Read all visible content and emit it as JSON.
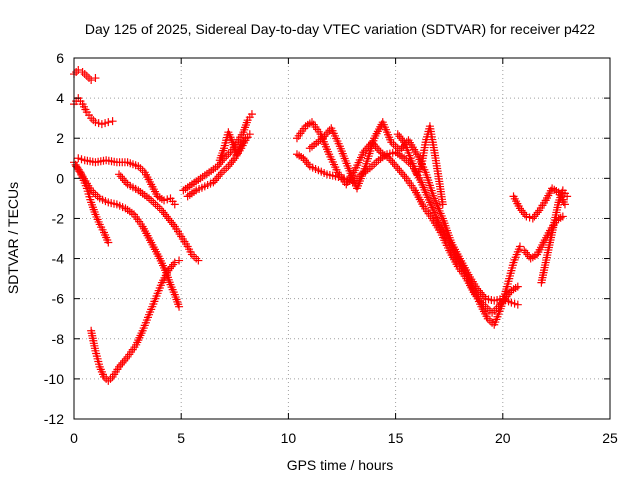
{
  "chart_data": {
    "type": "scatter",
    "title": "Day 125 of 2025, Sidereal Day-to-day VTEC variation (SDTVAR) for receiver p422",
    "xlabel": "GPS time / hours",
    "ylabel": "SDTVAR / TECUs",
    "xlim": [
      0,
      25
    ],
    "ylim": [
      -12,
      6
    ],
    "xticks": [
      0,
      5,
      10,
      15,
      20,
      25
    ],
    "yticks": [
      -12,
      -10,
      -8,
      -6,
      -4,
      -2,
      0,
      2,
      4,
      6
    ],
    "grid": true,
    "marker": "+",
    "color": "#ff0000",
    "series": [
      {
        "name": "trace-a-top",
        "points": [
          [
            0.0,
            5.2
          ],
          [
            0.2,
            5.4
          ],
          [
            0.4,
            5.3
          ],
          [
            0.6,
            5.1
          ],
          [
            0.8,
            4.9
          ],
          [
            1.0,
            5.0
          ]
        ]
      },
      {
        "name": "trace-b-upper",
        "points": [
          [
            0.0,
            3.7
          ],
          [
            0.2,
            4.0
          ],
          [
            0.4,
            3.7
          ],
          [
            0.6,
            3.3
          ],
          [
            0.8,
            3.0
          ],
          [
            1.0,
            2.8
          ],
          [
            1.3,
            2.7
          ],
          [
            1.6,
            2.8
          ],
          [
            1.8,
            2.85
          ]
        ]
      },
      {
        "name": "trace-c-descend",
        "points": [
          [
            0.0,
            0.8
          ],
          [
            0.3,
            0.3
          ],
          [
            0.6,
            -0.5
          ],
          [
            0.8,
            -1.2
          ],
          [
            1.0,
            -1.8
          ],
          [
            1.2,
            -2.3
          ],
          [
            1.4,
            -2.7
          ],
          [
            1.6,
            -3.2
          ]
        ]
      },
      {
        "name": "trace-d-long",
        "points": [
          [
            0.2,
            1.0
          ],
          [
            0.5,
            0.9
          ],
          [
            1.0,
            0.8
          ],
          [
            1.5,
            0.9
          ],
          [
            2.0,
            0.8
          ],
          [
            2.5,
            0.8
          ],
          [
            3.0,
            0.6
          ],
          [
            3.3,
            0.3
          ],
          [
            3.6,
            -0.3
          ],
          [
            3.9,
            -0.9
          ],
          [
            4.2,
            -1.1
          ],
          [
            4.5,
            -1.0
          ],
          [
            4.7,
            -1.3
          ]
        ]
      },
      {
        "name": "trace-e-mid",
        "points": [
          [
            2.1,
            0.2
          ],
          [
            2.5,
            -0.3
          ],
          [
            3.0,
            -0.6
          ],
          [
            3.5,
            -1.0
          ],
          [
            3.8,
            -1.3
          ],
          [
            4.1,
            -1.6
          ],
          [
            4.4,
            -2.0
          ],
          [
            4.7,
            -2.4
          ],
          [
            5.0,
            -2.9
          ],
          [
            5.3,
            -3.4
          ],
          [
            5.5,
            -3.8
          ],
          [
            5.8,
            -4.1
          ]
        ]
      },
      {
        "name": "trace-f-deep",
        "points": [
          [
            0.1,
            0.6
          ],
          [
            0.4,
            0.1
          ],
          [
            0.8,
            -0.6
          ],
          [
            1.2,
            -1.0
          ],
          [
            1.6,
            -1.2
          ],
          [
            2.0,
            -1.3
          ],
          [
            2.4,
            -1.5
          ],
          [
            2.8,
            -1.8
          ],
          [
            3.2,
            -2.4
          ],
          [
            3.6,
            -3.2
          ],
          [
            4.0,
            -4.0
          ],
          [
            4.3,
            -4.7
          ],
          [
            4.5,
            -5.3
          ],
          [
            4.7,
            -5.8
          ],
          [
            4.9,
            -6.4
          ]
        ]
      },
      {
        "name": "trace-g-valley",
        "points": [
          [
            0.8,
            -7.6
          ],
          [
            1.0,
            -8.6
          ],
          [
            1.2,
            -9.4
          ],
          [
            1.4,
            -9.9
          ],
          [
            1.6,
            -10.1
          ],
          [
            1.8,
            -9.9
          ],
          [
            2.1,
            -9.4
          ],
          [
            2.5,
            -8.9
          ],
          [
            2.9,
            -8.3
          ],
          [
            3.2,
            -7.6
          ],
          [
            3.5,
            -6.8
          ],
          [
            3.8,
            -6.0
          ],
          [
            4.1,
            -5.2
          ],
          [
            4.4,
            -4.6
          ],
          [
            4.7,
            -4.2
          ],
          [
            4.9,
            -4.1
          ]
        ]
      },
      {
        "name": "trace-h-rise",
        "points": [
          [
            5.1,
            -0.6
          ],
          [
            5.5,
            -0.3
          ],
          [
            5.9,
            0.0
          ],
          [
            6.3,
            0.3
          ],
          [
            6.7,
            0.6
          ],
          [
            7.0,
            1.0
          ],
          [
            7.3,
            1.3
          ],
          [
            7.6,
            1.8
          ],
          [
            7.9,
            2.3
          ],
          [
            8.1,
            2.9
          ],
          [
            8.3,
            3.2
          ]
        ]
      },
      {
        "name": "trace-i-rise2",
        "points": [
          [
            5.3,
            -0.9
          ],
          [
            5.7,
            -0.6
          ],
          [
            6.1,
            -0.4
          ],
          [
            6.5,
            -0.2
          ],
          [
            6.9,
            0.3
          ],
          [
            7.2,
            0.6
          ],
          [
            7.5,
            1.0
          ],
          [
            7.8,
            1.5
          ],
          [
            8.0,
            1.9
          ],
          [
            8.2,
            2.2
          ]
        ]
      },
      {
        "name": "trace-j-rise3",
        "points": [
          [
            6.8,
            0.9
          ],
          [
            7.0,
            1.5
          ],
          [
            7.2,
            2.3
          ],
          [
            7.4,
            1.8
          ],
          [
            7.6,
            1.2
          ],
          [
            7.8,
            1.7
          ],
          [
            8.0,
            2.0
          ]
        ]
      },
      {
        "name": "trace-k-afternoon",
        "points": [
          [
            10.4,
            1.2
          ],
          [
            10.7,
            1.0
          ],
          [
            11.0,
            0.6
          ],
          [
            11.4,
            0.4
          ],
          [
            11.8,
            0.2
          ],
          [
            12.2,
            0.1
          ],
          [
            12.6,
            0.0
          ],
          [
            13.0,
            -0.2
          ],
          [
            13.4,
            0.2
          ],
          [
            13.8,
            0.5
          ],
          [
            14.2,
            0.9
          ],
          [
            14.6,
            1.2
          ],
          [
            15.0,
            1.3
          ],
          [
            15.4,
            1.0
          ],
          [
            15.8,
            0.6
          ],
          [
            16.2,
            -0.2
          ],
          [
            16.6,
            -1.2
          ],
          [
            17.0,
            -2.2
          ],
          [
            17.4,
            -3.0
          ],
          [
            17.8,
            -3.8
          ],
          [
            18.2,
            -4.6
          ],
          [
            18.6,
            -5.5
          ],
          [
            19.0,
            -6.4
          ],
          [
            19.3,
            -7.0
          ],
          [
            19.6,
            -7.3
          ],
          [
            19.9,
            -6.5
          ],
          [
            20.2,
            -5.4
          ],
          [
            20.5,
            -4.2
          ],
          [
            20.8,
            -3.4
          ]
        ]
      },
      {
        "name": "trace-l-afternoon2",
        "points": [
          [
            10.4,
            2.0
          ],
          [
            10.8,
            2.6
          ],
          [
            11.1,
            2.8
          ],
          [
            11.5,
            2.2
          ],
          [
            11.9,
            1.2
          ],
          [
            12.3,
            0.3
          ],
          [
            12.7,
            -0.3
          ],
          [
            13.1,
            0.4
          ],
          [
            13.5,
            1.3
          ],
          [
            13.9,
            1.8
          ],
          [
            14.3,
            1.3
          ],
          [
            14.7,
            1.0
          ],
          [
            15.1,
            0.5
          ],
          [
            15.5,
            0.0
          ],
          [
            15.9,
            -0.6
          ],
          [
            16.3,
            -1.4
          ],
          [
            16.7,
            -2.0
          ],
          [
            17.1,
            -2.7
          ],
          [
            17.5,
            -3.6
          ],
          [
            17.9,
            -4.4
          ],
          [
            18.3,
            -5.0
          ],
          [
            18.7,
            -5.8
          ],
          [
            19.1,
            -6.3
          ],
          [
            19.5,
            -6.7
          ],
          [
            19.8,
            -6.4
          ],
          [
            20.1,
            -6.0
          ],
          [
            20.4,
            -5.6
          ],
          [
            20.7,
            -5.4
          ]
        ]
      },
      {
        "name": "trace-m-afternoon3",
        "points": [
          [
            11.0,
            1.5
          ],
          [
            11.6,
            2.0
          ],
          [
            12.0,
            2.5
          ],
          [
            12.4,
            1.6
          ],
          [
            12.8,
            0.5
          ],
          [
            13.2,
            -0.5
          ],
          [
            13.6,
            0.6
          ],
          [
            14.0,
            2.0
          ],
          [
            14.4,
            2.8
          ],
          [
            14.8,
            1.8
          ],
          [
            15.2,
            1.4
          ],
          [
            15.6,
            1.9
          ],
          [
            16.0,
            1.2
          ],
          [
            16.4,
            0.3
          ],
          [
            16.8,
            -1.0
          ],
          [
            17.2,
            -2.0
          ],
          [
            17.6,
            -3.2
          ],
          [
            18.0,
            -4.0
          ],
          [
            18.4,
            -4.8
          ],
          [
            18.8,
            -5.5
          ],
          [
            19.2,
            -6.0
          ],
          [
            19.6,
            -6.1
          ],
          [
            20.0,
            -6.0
          ],
          [
            20.4,
            -6.2
          ],
          [
            20.7,
            -6.3
          ]
        ]
      },
      {
        "name": "trace-n-peak",
        "points": [
          [
            15.1,
            2.2
          ],
          [
            15.4,
            1.8
          ],
          [
            15.7,
            1.0
          ],
          [
            16.0,
            0.2
          ],
          [
            16.2,
            0.6
          ],
          [
            16.4,
            1.8
          ],
          [
            16.6,
            2.6
          ],
          [
            16.8,
            1.4
          ],
          [
            17.0,
            0.1
          ],
          [
            17.2,
            -1.3
          ]
        ]
      },
      {
        "name": "trace-o-late",
        "points": [
          [
            20.5,
            -0.9
          ],
          [
            20.8,
            -1.5
          ],
          [
            21.1,
            -1.9
          ],
          [
            21.4,
            -2.0
          ],
          [
            21.7,
            -1.6
          ],
          [
            22.0,
            -1.1
          ],
          [
            22.3,
            -0.5
          ],
          [
            22.6,
            -0.7
          ],
          [
            22.9,
            -1.3
          ]
        ]
      },
      {
        "name": "trace-p-late2",
        "points": [
          [
            21.0,
            -3.6
          ],
          [
            21.3,
            -4.0
          ],
          [
            21.6,
            -3.8
          ],
          [
            21.9,
            -3.2
          ],
          [
            22.2,
            -2.6
          ],
          [
            22.5,
            -2.1
          ],
          [
            22.8,
            -1.9
          ]
        ]
      },
      {
        "name": "trace-q-late3",
        "points": [
          [
            21.8,
            -5.2
          ],
          [
            22.0,
            -4.2
          ],
          [
            22.2,
            -3.2
          ],
          [
            22.4,
            -2.2
          ],
          [
            22.6,
            -1.2
          ],
          [
            22.8,
            -0.6
          ],
          [
            23.0,
            -0.9
          ]
        ]
      }
    ]
  }
}
